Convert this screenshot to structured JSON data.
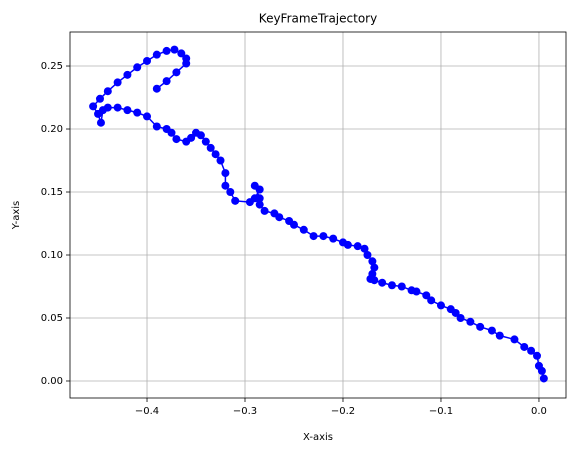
{
  "chart_data": {
    "type": "line",
    "title": "KeyFrameTrajectory",
    "x_label": "X-axis",
    "y_label": "Y-axis",
    "color": "#0000ff",
    "grid": true,
    "markers": true,
    "x": [
      0.005,
      0.003,
      0.0,
      -0.002,
      -0.008,
      -0.015,
      -0.025,
      -0.04,
      -0.048,
      -0.06,
      -0.07,
      -0.08,
      -0.085,
      -0.09,
      -0.1,
      -0.11,
      -0.115,
      -0.125,
      -0.13,
      -0.14,
      -0.15,
      -0.16,
      -0.168,
      -0.172,
      -0.17,
      -0.168,
      -0.17,
      -0.175,
      -0.178,
      -0.185,
      -0.195,
      -0.2,
      -0.21,
      -0.22,
      -0.23,
      -0.24,
      -0.25,
      -0.255,
      -0.265,
      -0.27,
      -0.28,
      -0.285,
      -0.29,
      -0.285,
      -0.29,
      -0.285,
      -0.295,
      -0.31,
      -0.315,
      -0.32,
      -0.32,
      -0.325,
      -0.33,
      -0.335,
      -0.34,
      -0.345,
      -0.35,
      -0.355,
      -0.36,
      -0.37,
      -0.375,
      -0.38,
      -0.39,
      -0.4,
      -0.41,
      -0.42,
      -0.43,
      -0.44,
      -0.445,
      -0.447,
      -0.45,
      -0.455,
      -0.448,
      -0.44,
      -0.43,
      -0.42,
      -0.41,
      -0.4,
      -0.39,
      -0.38,
      -0.372,
      -0.365,
      -0.36,
      -0.36,
      -0.37,
      -0.38,
      -0.39
    ],
    "values": [
      0.002,
      0.008,
      0.012,
      0.02,
      0.024,
      0.027,
      0.033,
      0.036,
      0.04,
      0.043,
      0.047,
      0.05,
      0.054,
      0.057,
      0.06,
      0.064,
      0.068,
      0.071,
      0.072,
      0.075,
      0.076,
      0.078,
      0.08,
      0.081,
      0.085,
      0.09,
      0.095,
      0.1,
      0.105,
      0.107,
      0.108,
      0.11,
      0.113,
      0.115,
      0.115,
      0.12,
      0.124,
      0.127,
      0.13,
      0.133,
      0.135,
      0.14,
      0.145,
      0.152,
      0.155,
      0.145,
      0.142,
      0.143,
      0.15,
      0.155,
      0.165,
      0.175,
      0.18,
      0.185,
      0.19,
      0.195,
      0.197,
      0.193,
      0.19,
      0.192,
      0.197,
      0.2,
      0.202,
      0.21,
      0.213,
      0.215,
      0.217,
      0.217,
      0.215,
      0.205,
      0.212,
      0.218,
      0.224,
      0.23,
      0.237,
      0.243,
      0.249,
      0.254,
      0.259,
      0.262,
      0.263,
      0.26,
      0.256,
      0.252,
      0.245,
      0.238,
      0.232
    ],
    "xlim": [
      -0.4786,
      0.0276
    ],
    "ylim": [
      -0.0135,
      0.277
    ],
    "xticks": [
      {
        "value": -0.4,
        "label": "−0.4"
      },
      {
        "value": -0.3,
        "label": "−0.3"
      },
      {
        "value": -0.2,
        "label": "−0.2"
      },
      {
        "value": -0.1,
        "label": "−0.1"
      },
      {
        "value": 0,
        "label": "0.0"
      }
    ],
    "yticks": [
      {
        "value": 0,
        "label": "0.00"
      },
      {
        "value": 0.05,
        "label": "0.05"
      },
      {
        "value": 0.1,
        "label": "0.10"
      },
      {
        "value": 0.15,
        "label": "0.15"
      },
      {
        "value": 0.2,
        "label": "0.20"
      },
      {
        "value": 0.25,
        "label": "0.25"
      }
    ]
  }
}
